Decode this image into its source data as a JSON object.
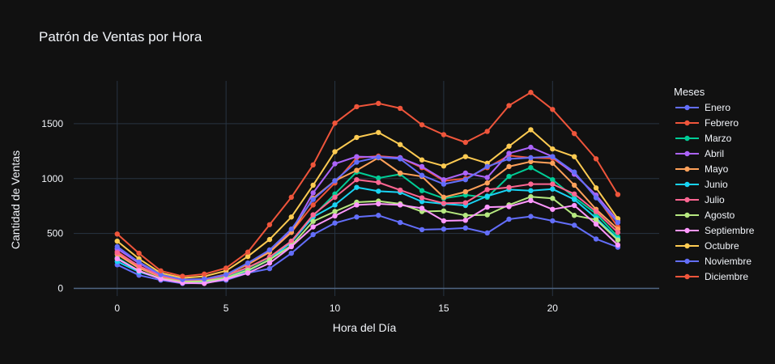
{
  "chart_data": {
    "type": "line",
    "title": "Patrón de Ventas por Hora",
    "xlabel": "Hora del Día",
    "ylabel": "Cantidad de Ventas",
    "xlim": [
      -2,
      24.9
    ],
    "ylim": [
      -70,
      1890
    ],
    "xticks": [
      0,
      5,
      10,
      15,
      20
    ],
    "yticks": [
      0,
      500,
      1000,
      1500
    ],
    "grid": true,
    "legend_title": "Meses",
    "legend_position": "right",
    "x": [
      0,
      1,
      2,
      3,
      4,
      5,
      6,
      7,
      8,
      9,
      10,
      11,
      12,
      13,
      14,
      15,
      16,
      17,
      18,
      19,
      20,
      21,
      22,
      23
    ],
    "series": [
      {
        "name": "Enero",
        "color": "#636efa",
        "values": [
          215,
          120,
          75,
          45,
          50,
          75,
          140,
          180,
          320,
          490,
          595,
          650,
          665,
          600,
          535,
          540,
          550,
          505,
          630,
          655,
          615,
          575,
          450,
          375
        ]
      },
      {
        "name": "Febrero",
        "color": "#EF553B",
        "values": [
          335,
          200,
          105,
          75,
          85,
          130,
          215,
          330,
          510,
          760,
          960,
          1190,
          1205,
          1190,
          1100,
          980,
          1000,
          1100,
          1210,
          1190,
          1185,
          1050,
          840,
          560
        ]
      },
      {
        "name": "Marzo",
        "color": "#00cc96",
        "values": [
          280,
          160,
          90,
          60,
          65,
          100,
          185,
          280,
          430,
          660,
          860,
          1060,
          1005,
          1040,
          890,
          820,
          850,
          830,
          1020,
          1100,
          990,
          830,
          680,
          470
        ]
      },
      {
        "name": "Abril",
        "color": "#ab63fa",
        "values": [
          360,
          230,
          120,
          80,
          75,
          120,
          230,
          345,
          520,
          870,
          1135,
          1200,
          1195,
          1190,
          1110,
          990,
          1050,
          1010,
          1230,
          1285,
          1200,
          1040,
          850,
          615
        ]
      },
      {
        "name": "Mayo",
        "color": "#FFA15A",
        "values": [
          310,
          185,
          105,
          70,
          75,
          120,
          220,
          330,
          510,
          820,
          980,
          1075,
          1190,
          1050,
          1020,
          830,
          880,
          960,
          1110,
          1155,
          1140,
          940,
          720,
          540
        ]
      },
      {
        "name": "Junio",
        "color": "#19d3f3",
        "values": [
          245,
          150,
          90,
          55,
          60,
          90,
          160,
          260,
          420,
          650,
          760,
          920,
          885,
          875,
          790,
          770,
          755,
          840,
          900,
          890,
          905,
          810,
          640,
          450
        ]
      },
      {
        "name": "Julio",
        "color": "#FF6692",
        "values": [
          325,
          205,
          110,
          75,
          80,
          115,
          190,
          285,
          430,
          670,
          830,
          990,
          965,
          895,
          825,
          775,
          780,
          900,
          920,
          950,
          950,
          860,
          700,
          510
        ]
      },
      {
        "name": "Agosto",
        "color": "#B6E880",
        "values": [
          270,
          160,
          90,
          60,
          65,
          95,
          165,
          260,
          390,
          610,
          700,
          785,
          795,
          770,
          700,
          705,
          665,
          670,
          760,
          835,
          820,
          665,
          625,
          440
        ]
      },
      {
        "name": "Septiembre",
        "color": "#FF97FF",
        "values": [
          270,
          160,
          85,
          50,
          45,
          85,
          140,
          230,
          380,
          560,
          660,
          760,
          770,
          760,
          730,
          615,
          620,
          740,
          745,
          800,
          720,
          755,
          585,
          395
        ]
      },
      {
        "name": "Octubre",
        "color": "#FECB52",
        "values": [
          430,
          270,
          140,
          95,
          110,
          160,
          290,
          445,
          650,
          940,
          1245,
          1375,
          1420,
          1310,
          1170,
          1115,
          1200,
          1140,
          1295,
          1445,
          1270,
          1200,
          915,
          635
        ]
      },
      {
        "name": "Noviembre",
        "color": "#636efa",
        "values": [
          380,
          240,
          125,
          80,
          85,
          125,
          230,
          350,
          540,
          810,
          980,
          1150,
          1195,
          1180,
          1030,
          950,
          990,
          1110,
          1180,
          1190,
          1200,
          1060,
          825,
          600
        ]
      },
      {
        "name": "Diciembre",
        "color": "#EF553B",
        "values": [
          495,
          320,
          160,
          110,
          130,
          185,
          330,
          580,
          830,
          1125,
          1505,
          1655,
          1685,
          1640,
          1490,
          1400,
          1330,
          1430,
          1665,
          1785,
          1630,
          1410,
          1180,
          855
        ]
      }
    ]
  }
}
